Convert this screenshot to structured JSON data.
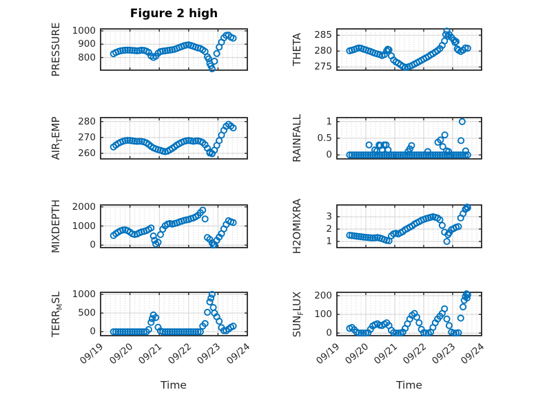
{
  "title": "Figure 2 high",
  "xlabel": "Time",
  "x_tick_labels": [
    "09/19",
    "09/20",
    "09/21",
    "09/22",
    "09/23",
    "09/24"
  ],
  "x_range_days": [
    0,
    5
  ],
  "colors": {
    "marker": "#0072BD",
    "axis": "#262626",
    "grid_major": "#d2d2d2",
    "grid_minor": "#c9c9c9",
    "title": "#000000"
  },
  "marker": {
    "shape": "open-circle",
    "radius": 4.1,
    "stroke_width": 1.9
  },
  "grid": {
    "major": "solid",
    "minor_x": "dotted",
    "minor_per_day": 6
  },
  "chart_data": [
    {
      "name": "PRESSURE",
      "type": "scatter",
      "row": 0,
      "col": 0,
      "label_parts": [
        {
          "text": "PRESSURE"
        }
      ],
      "ylim": [
        705,
        1015
      ],
      "yticks": [
        800,
        900,
        1000
      ],
      "x0": 0.44,
      "dx": 0.08,
      "values": [
        828,
        838,
        845,
        850,
        853,
        855,
        856,
        855,
        853,
        852,
        850,
        852,
        855,
        853,
        848,
        838,
        812,
        800,
        810,
        832,
        845,
        848,
        850,
        853,
        856,
        858,
        862,
        868,
        875,
        882,
        888,
        893,
        895,
        890,
        884,
        878,
        872,
        868,
        858,
        845,
        805,
        755,
        715,
        772,
        830,
        878,
        915,
        948,
        966,
        968,
        952,
        945
      ],
      "extra_points": [
        [
          3.68,
          790
        ],
        [
          3.76,
          738
        ]
      ]
    },
    {
      "name": "THETA",
      "type": "scatter",
      "row": 0,
      "col": 1,
      "label_parts": [
        {
          "text": "THETA"
        }
      ],
      "ylim": [
        274,
        287
      ],
      "yticks": [
        275,
        280,
        285
      ],
      "x0": 0.44,
      "dx": 0.08,
      "values": [
        280.1,
        280.3,
        280.5,
        280.8,
        281.0,
        280.9,
        280.6,
        280.4,
        280.1,
        279.9,
        279.6,
        279.3,
        279.1,
        278.9,
        278.6,
        278.9,
        280.1,
        280.4,
        278.5,
        277.2,
        276.6,
        276.2,
        275.7,
        275.2,
        274.9,
        275.0,
        275.2,
        275.5,
        275.9,
        276.3,
        276.7,
        277.1,
        277.5,
        277.9,
        278.3,
        278.8,
        279.2,
        279.7,
        280.2,
        280.8,
        281.8,
        283.2,
        286.3,
        285.2,
        284.3,
        283.5,
        283.0,
        280.3,
        279.9,
        280.3,
        281.0,
        280.9
      ],
      "extra_points": [
        [
          1.76,
          280.6
        ],
        [
          3.76,
          285.2
        ],
        [
          3.84,
          284.7
        ],
        [
          4.08,
          282.7
        ],
        [
          4.16,
          280.7
        ]
      ]
    },
    {
      "name": "AIR_TEMP",
      "type": "scatter",
      "row": 1,
      "col": 0,
      "label_parts": [
        {
          "text": "AIR"
        },
        {
          "text": "T",
          "sub": true
        },
        {
          "text": "EMP"
        }
      ],
      "ylim": [
        256.5,
        282.5
      ],
      "yticks": [
        260,
        270,
        280
      ],
      "x0": 0.44,
      "dx": 0.08,
      "values": [
        264.0,
        265.2,
        266.2,
        267.0,
        267.6,
        268.0,
        268.2,
        268.1,
        267.9,
        267.7,
        267.5,
        267.6,
        267.5,
        267.2,
        266.6,
        265.6,
        264.4,
        263.4,
        262.8,
        262.3,
        261.9,
        261.4,
        261.0,
        261.4,
        262.2,
        263.1,
        264.1,
        265.2,
        266.1,
        266.9,
        267.5,
        267.9,
        268.1,
        267.9,
        267.6,
        267.8,
        267.9,
        267.5,
        266.8,
        265.4,
        263.2,
        260.8,
        259.7,
        262.0,
        265.0,
        268.0,
        271.5,
        274.5,
        277.0,
        278.3,
        277.2,
        276.0
      ],
      "extra_points": [
        [
          3.72,
          260.2
        ],
        [
          3.8,
          259.9
        ]
      ]
    },
    {
      "name": "RAINFALL",
      "type": "scatter",
      "row": 1,
      "col": 1,
      "label_parts": [
        {
          "text": "RAINFALL"
        }
      ],
      "ylim": [
        -0.12,
        1.12
      ],
      "yticks": [
        0,
        0.5,
        1
      ],
      "x0": 0.44,
      "dx": 0.08,
      "values": [
        0,
        0,
        0,
        0,
        0,
        0,
        0,
        0,
        0,
        0,
        0,
        0,
        0,
        0,
        0,
        0,
        0,
        0,
        0,
        0,
        0,
        0,
        0,
        0,
        0,
        0,
        0,
        0,
        0,
        0,
        0,
        0,
        0,
        0,
        0,
        0,
        0,
        0,
        0,
        0,
        0,
        0,
        0,
        0,
        0,
        0,
        0,
        0,
        0,
        0,
        0,
        0
      ],
      "extra_points": [
        [
          1.11,
          0.3
        ],
        [
          1.31,
          0.15
        ],
        [
          1.38,
          0.12
        ],
        [
          1.46,
          0.3
        ],
        [
          1.5,
          0.28
        ],
        [
          1.56,
          0.15
        ],
        [
          1.63,
          0.3
        ],
        [
          1.7,
          0.3
        ],
        [
          1.77,
          0.15
        ],
        [
          2.46,
          0.1
        ],
        [
          2.52,
          0.18
        ],
        [
          2.58,
          0.28
        ],
        [
          3.14,
          0.1
        ],
        [
          3.49,
          0.38
        ],
        [
          3.58,
          0.45
        ],
        [
          3.66,
          0.25
        ],
        [
          3.73,
          0.6
        ],
        [
          3.79,
          0.12
        ],
        [
          3.86,
          0.1
        ],
        [
          4.29,
          0.43
        ],
        [
          4.33,
          1.0
        ],
        [
          4.45,
          0.12
        ]
      ]
    },
    {
      "name": "MIXDEPTH",
      "type": "scatter",
      "row": 2,
      "col": 0,
      "label_parts": [
        {
          "text": "MIXDEPTH"
        }
      ],
      "ylim": [
        -130,
        2100
      ],
      "yticks": [
        0,
        1000,
        2000
      ],
      "x0": 0.44,
      "dx": 0.08,
      "values": [
        500,
        600,
        680,
        750,
        790,
        800,
        760,
        680,
        590,
        550,
        580,
        640,
        690,
        720,
        760,
        820,
        900,
        480,
        60,
        150,
        550,
        830,
        1010,
        1100,
        1130,
        1100,
        1130,
        1160,
        1210,
        1250,
        1290,
        1320,
        1340,
        1390,
        1420,
        1480,
        1560,
        1700,
        1830,
        1370,
        400,
        300,
        120,
        30,
        250,
        420,
        600,
        850,
        1080,
        1280,
        1220,
        1180
      ],
      "extra_points": [
        [
          1.84,
          250
        ],
        [
          3.84,
          0
        ]
      ]
    },
    {
      "name": "H2OMIXRA",
      "type": "scatter",
      "row": 2,
      "col": 1,
      "label_parts": [
        {
          "text": "H2OMIXRA"
        }
      ],
      "ylim": [
        0.5,
        3.95
      ],
      "yticks": [
        1,
        2,
        3
      ],
      "x0": 0.44,
      "dx": 0.08,
      "values": [
        1.5,
        1.48,
        1.45,
        1.42,
        1.4,
        1.38,
        1.35,
        1.33,
        1.32,
        1.3,
        1.28,
        1.3,
        1.32,
        1.28,
        1.22,
        1.15,
        1.08,
        1.05,
        1.45,
        1.62,
        1.66,
        1.6,
        1.7,
        1.8,
        1.95,
        2.05,
        2.15,
        2.25,
        2.4,
        2.5,
        2.6,
        2.7,
        2.78,
        2.85,
        2.9,
        2.95,
        3.0,
        2.95,
        2.9,
        2.75,
        2.3,
        1.75,
        1.0,
        1.7,
        1.95,
        2.05,
        2.15,
        2.2,
        2.9,
        3.25,
        3.6,
        3.72
      ],
      "extra_points": [
        [
          3.84,
          1.55
        ],
        [
          4.46,
          3.65
        ],
        [
          4.5,
          3.78
        ]
      ]
    },
    {
      "name": "TERR_MSL",
      "type": "scatter",
      "row": 3,
      "col": 0,
      "label_parts": [
        {
          "text": "TERR"
        },
        {
          "text": "M",
          "sub": true
        },
        {
          "text": "SL"
        }
      ],
      "ylim": [
        -105,
        1055
      ],
      "yticks": [
        0,
        500,
        1000
      ],
      "x0": 0.44,
      "dx": 0.08,
      "values": [
        0,
        0,
        0,
        0,
        0,
        0,
        0,
        0,
        0,
        0,
        0,
        0,
        0,
        0,
        0,
        60,
        250,
        450,
        380,
        120,
        20,
        0,
        0,
        0,
        0,
        0,
        0,
        0,
        0,
        0,
        0,
        0,
        0,
        0,
        0,
        0,
        0,
        0,
        150,
        220,
        520,
        800,
        1000,
        500,
        400,
        280,
        110,
        30,
        25,
        70,
        120,
        150
      ],
      "extra_points": [
        [
          1.76,
          350
        ],
        [
          3.76,
          900
        ],
        [
          3.84,
          650
        ]
      ]
    },
    {
      "name": "SUN_FLUX",
      "type": "scatter",
      "row": 3,
      "col": 1,
      "label_parts": [
        {
          "text": "SUN"
        },
        {
          "text": "F",
          "sub": true
        },
        {
          "text": "LUX"
        }
      ],
      "ylim": [
        -14,
        218
      ],
      "yticks": [
        0,
        100,
        200
      ],
      "x0": 0.44,
      "dx": 0.08,
      "values": [
        25,
        30,
        18,
        5,
        0,
        0,
        0,
        0,
        2,
        20,
        38,
        45,
        50,
        42,
        40,
        48,
        55,
        40,
        15,
        2,
        0,
        0,
        0,
        5,
        25,
        50,
        75,
        95,
        105,
        85,
        55,
        20,
        2,
        0,
        0,
        5,
        30,
        55,
        75,
        90,
        105,
        130,
        75,
        40,
        5,
        0,
        0,
        2,
        80,
        140,
        195,
        205
      ],
      "extra_points": [
        [
          4.4,
          175
        ],
        [
          4.48,
          210
        ],
        [
          4.5,
          188
        ]
      ]
    }
  ]
}
